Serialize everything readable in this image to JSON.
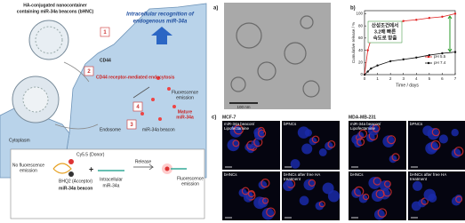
{
  "schematic": {
    "title": [
      "HA-conjugated nanocontainer",
      "containing miR-34a beacons (bHNC)"
    ],
    "recognition": [
      "Intracellular recognition of",
      "endogenous miR-34a"
    ],
    "steps": [
      "1",
      "2",
      "3",
      "4"
    ],
    "cd44": "CD44",
    "endocytosis": "CD44 receptor-mediated endocytosis",
    "fluorescence_top": [
      "Fluorescence",
      "emission"
    ],
    "mature": [
      "Mature",
      "miR-34a"
    ],
    "endosome": "Endosome",
    "beacon": "miR-34a beacon",
    "cytoplasm": "Cytoplasm",
    "mechanism": {
      "no_fluorescence": [
        "No fluorescence",
        "emission"
      ],
      "donor": "Cy5.5 (Donor)",
      "acceptor": "BHQ2 (Acceptor)",
      "beacon": "miR-34a beacon",
      "plus": "+",
      "target": [
        "Intracellular",
        "miR-34a"
      ],
      "release": "Release",
      "fluorescence": [
        "Fluorescence",
        "emission"
      ]
    }
  },
  "panel_a": {
    "label": "a)",
    "scale": "100 nm"
  },
  "chart_data": {
    "type": "line",
    "label": "b)",
    "x_label": "Time / days",
    "y_label": "Cumulative release / %",
    "x": [
      0,
      0.25,
      0.5,
      1,
      2,
      3,
      4,
      5,
      6,
      7
    ],
    "series": [
      {
        "name": "pH 5.5",
        "color": "#e02020",
        "values": [
          0,
          40,
          58,
          70,
          80,
          88,
          90,
          93,
          95,
          100
        ]
      },
      {
        "name": "pH 7.4",
        "color": "#111111",
        "values": [
          0,
          5,
          10,
          15,
          22,
          25,
          28,
          32,
          35,
          37
        ]
      }
    ],
    "xlim": [
      0,
      7
    ],
    "xticks": [
      0,
      1,
      2,
      3,
      4,
      5,
      6,
      7
    ],
    "ylim": [
      0,
      105
    ],
    "yticks": [
      0,
      20,
      40,
      60,
      80,
      100
    ],
    "legend": "lower right",
    "annotation": [
      "산성조건에서",
      "3.2배 빠른",
      "속도로 방출"
    ]
  },
  "panel_c": {
    "label": "c)",
    "groups": [
      {
        "cell": "MCF-7",
        "panels": [
          [
            "miR-34a beacon/",
            "Lipofectamine"
          ],
          [
            "bPNCs"
          ],
          [
            "bHNCs"
          ],
          [
            "bHNCs after free HA",
            "treatment"
          ]
        ]
      },
      {
        "cell": "MDA-MB-231",
        "panels": [
          [
            "miR-34a beacon/",
            "Lipofectamine"
          ],
          [
            "bPNCs"
          ],
          [
            "bHNCs"
          ],
          [
            "bHNCs after free HA",
            "treatment"
          ]
        ]
      }
    ]
  }
}
